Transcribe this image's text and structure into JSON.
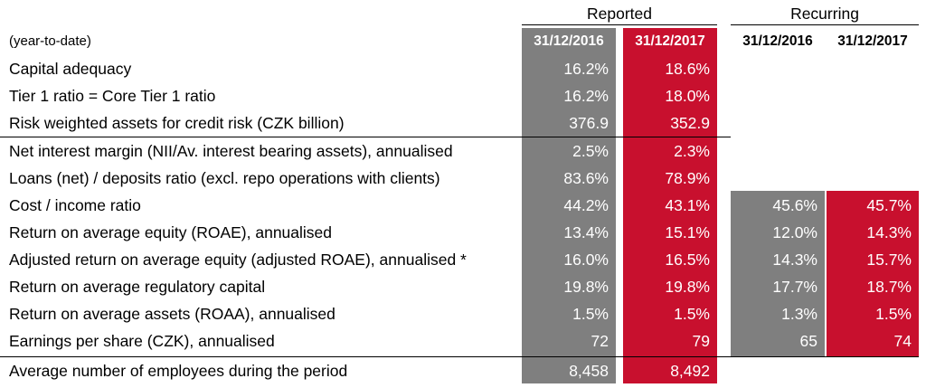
{
  "groups": {
    "reported": "Reported",
    "recurring": "Recurring"
  },
  "colors": {
    "gray": "#7f7f7f",
    "red": "#c8102e"
  },
  "header": {
    "label": "(year-to-date)",
    "reported": [
      "31/12/2016",
      "31/12/2017"
    ],
    "recurring": [
      "31/12/2016",
      "31/12/2017"
    ]
  },
  "rows": [
    {
      "label": "Capital adequacy",
      "rep": [
        "16.2%",
        "18.6%"
      ],
      "rec": null
    },
    {
      "label": "Tier 1 ratio = Core Tier 1 ratio",
      "rep": [
        "16.2%",
        "18.0%"
      ],
      "rec": null
    },
    {
      "label": "Risk weighted assets for credit risk (CZK billion)",
      "rep": [
        "376.9",
        "352.9"
      ],
      "rec": null
    },
    {
      "label": "Net interest margin (NII/Av. interest bearing assets), annualised",
      "rep": [
        "2.5%",
        "2.3%"
      ],
      "rec": null
    },
    {
      "label": "Loans (net) / deposits ratio (excl. repo operations with clients)",
      "rep": [
        "83.6%",
        "78.9%"
      ],
      "rec": null
    },
    {
      "label": "Cost / income ratio",
      "rep": [
        "44.2%",
        "43.1%"
      ],
      "rec": [
        "45.6%",
        "45.7%"
      ]
    },
    {
      "label": "Return on average equity (ROAE), annualised",
      "rep": [
        "13.4%",
        "15.1%"
      ],
      "rec": [
        "12.0%",
        "14.3%"
      ]
    },
    {
      "label": "Adjusted return on average equity (adjusted ROAE), annualised *",
      "rep": [
        "16.0%",
        "16.5%"
      ],
      "rec": [
        "14.3%",
        "15.7%"
      ]
    },
    {
      "label": "Return on average regulatory capital",
      "rep": [
        "19.8%",
        "19.8%"
      ],
      "rec": [
        "17.7%",
        "18.7%"
      ]
    },
    {
      "label": "Return on average assets (ROAA), annualised",
      "rep": [
        "1.5%",
        "1.5%"
      ],
      "rec": [
        "1.3%",
        "1.5%"
      ]
    },
    {
      "label": "Earnings per share (CZK), annualised",
      "rep": [
        "72",
        "79"
      ],
      "rec": [
        "65",
        "74"
      ]
    },
    {
      "label": "Average number of employees during the period",
      "rep": [
        "8,458",
        "8,492"
      ],
      "rec": null
    }
  ]
}
